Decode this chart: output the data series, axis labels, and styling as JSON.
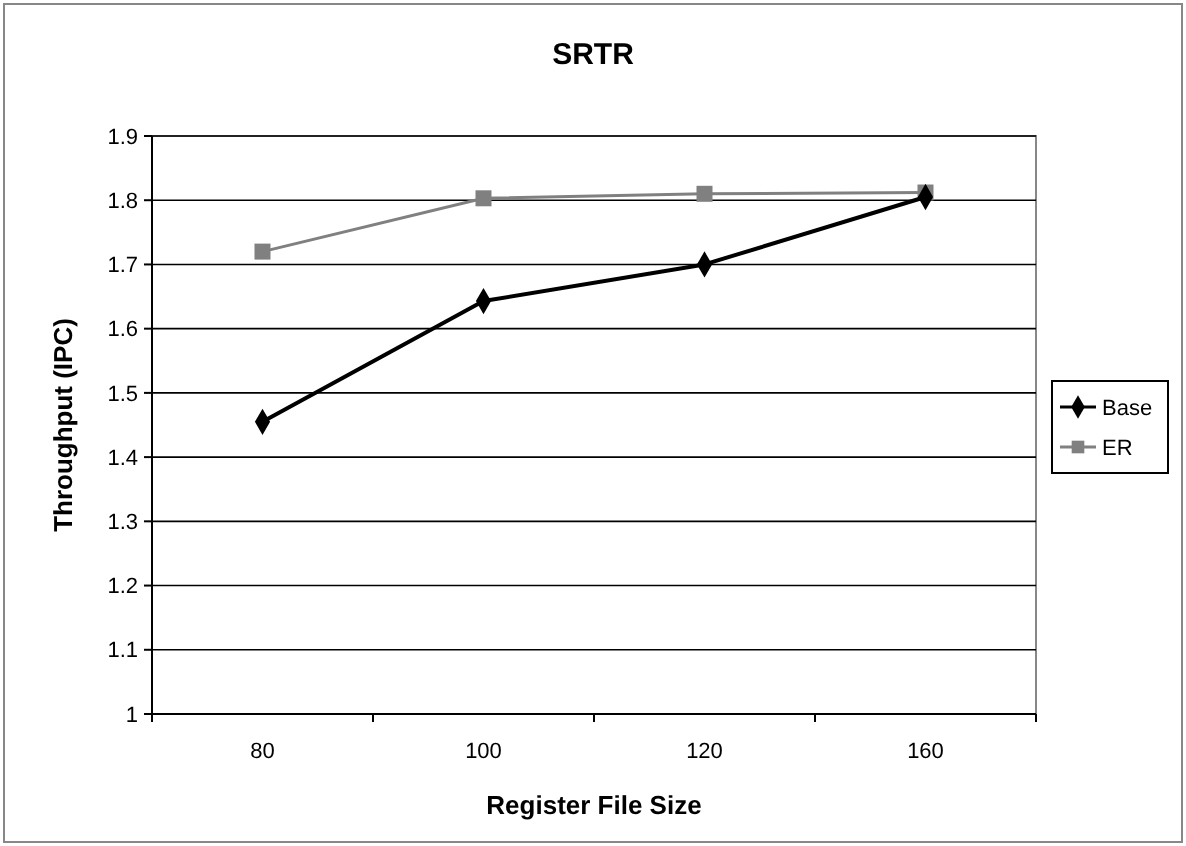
{
  "chart_data": {
    "type": "line",
    "title": "SRTR",
    "xlabel": "Register File Size",
    "ylabel": "Throughput (IPC)",
    "categories": [
      "80",
      "100",
      "120",
      "160"
    ],
    "series": [
      {
        "name": "Base",
        "color": "#000000",
        "marker": "diamond",
        "values": [
          1.455,
          1.643,
          1.7,
          1.805
        ]
      },
      {
        "name": "ER",
        "color": "#808080",
        "marker": "square",
        "values": [
          1.72,
          1.803,
          1.81,
          1.812
        ]
      }
    ],
    "ylim": [
      1,
      1.9
    ],
    "yticks": [
      1,
      1.1,
      1.2,
      1.3,
      1.4,
      1.5,
      1.6,
      1.7,
      1.8,
      1.9
    ],
    "grid": "y",
    "legend": "right"
  }
}
